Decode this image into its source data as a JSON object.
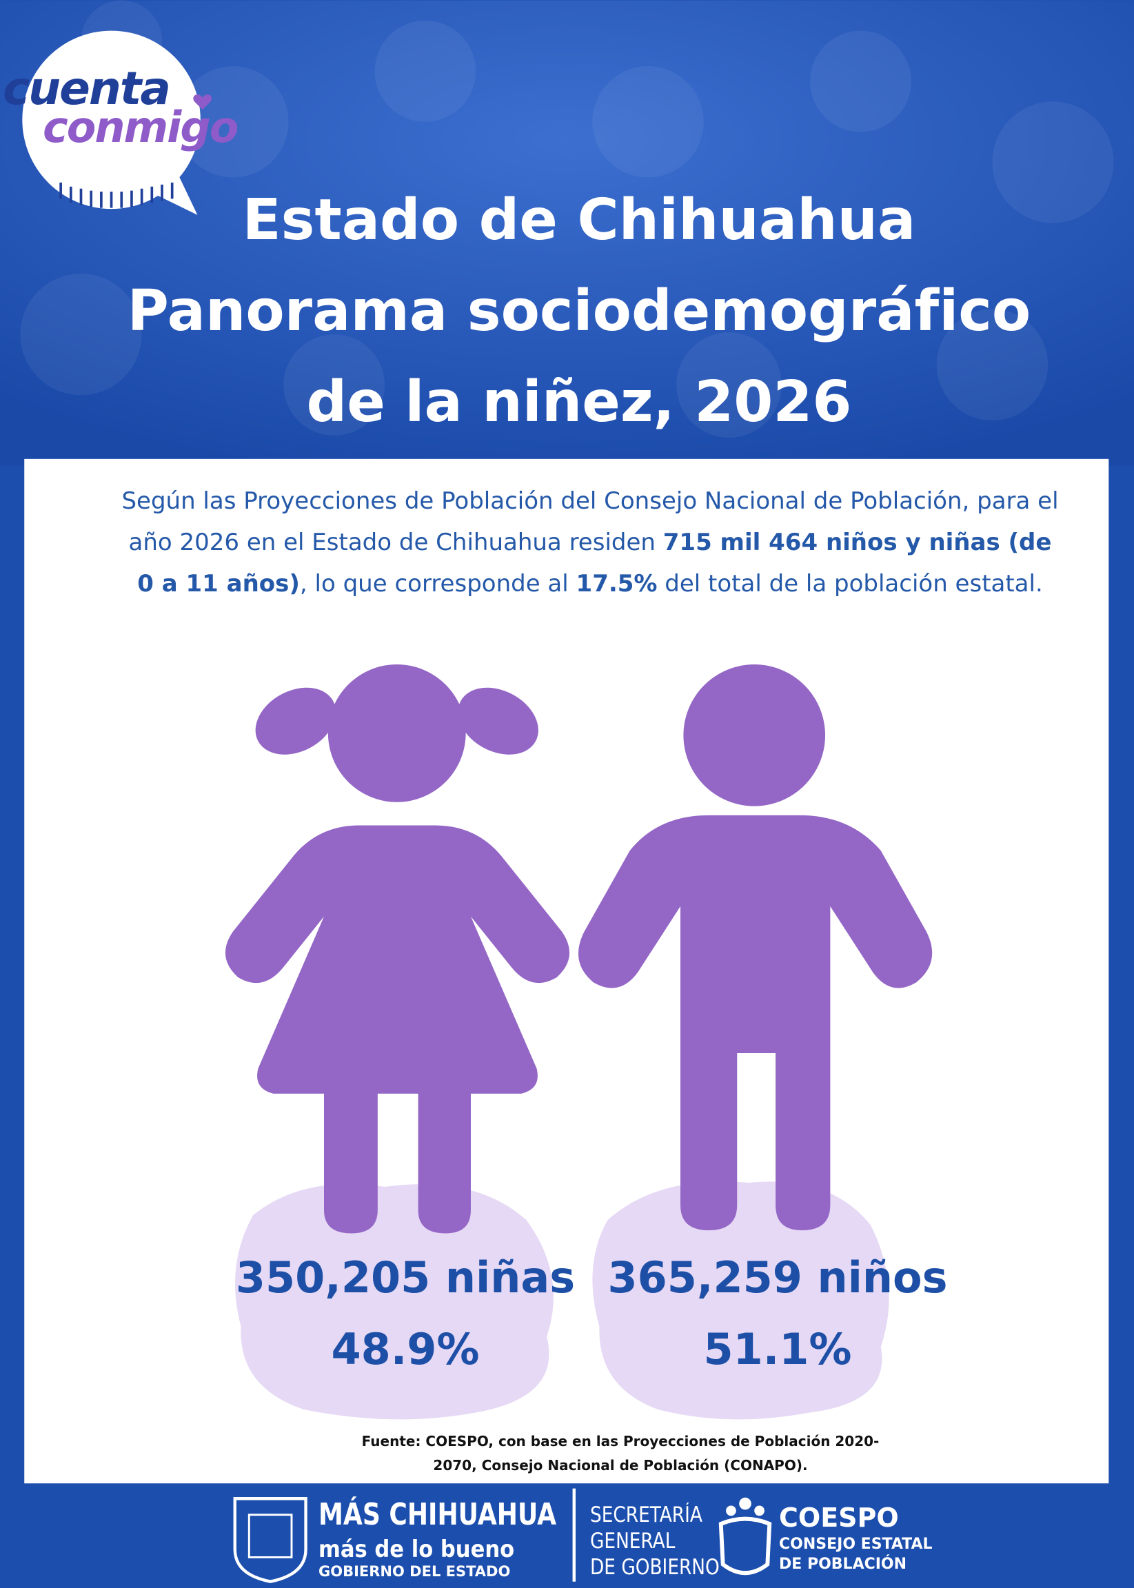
{
  "logo": {
    "line1": "cuenta",
    "line2": "conmigo"
  },
  "title": {
    "lines": [
      "Estado de Chihuahua",
      "Panorama sociodemográfico",
      "de la niñez, 2026"
    ]
  },
  "intro": {
    "segments": [
      "Según las Proyecciones de Población del Consejo Nacional de Población, para el año 2026 en el Estado de Chihuahua residen ",
      "715 mil 464 niños y niñas (de 0 a 11 años)",
      ", lo que corresponde al ",
      "17.5%",
      " del total de la población estatal."
    ]
  },
  "figures": [
    {
      "count": "350,205 niñas",
      "percent": "48.9%"
    },
    {
      "count": "365,259 niños",
      "percent": "51.1%"
    }
  ],
  "source": "Fuente: COESPO, con base en las Proyecciones de Población 2020-2070, Consejo Nacional de Población (CONAPO).",
  "footer": {
    "gobierno": [
      "MÁS CHIHUAHUA",
      "más de lo bueno",
      "GOBIERNO DEL ESTADO"
    ],
    "secretaria": [
      "SECRETARÍA",
      "GENERAL",
      "DE GOBIERNO"
    ],
    "coespo": [
      "COESPO",
      "CONSEJO ESTATAL",
      "DE POBLACIÓN"
    ]
  }
}
